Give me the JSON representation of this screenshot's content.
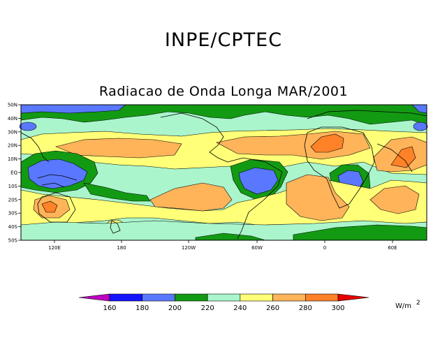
{
  "header": {
    "title": "INPE/CPTEC"
  },
  "map": {
    "title": "Radiacao de Onda Longa MAR/2001",
    "variable": "Outgoing Longwave Radiation",
    "lat_labels": [
      "50N",
      "40N",
      "30N",
      "20N",
      "10N",
      "EQ",
      "10S",
      "20S",
      "30S",
      "40S",
      "50S"
    ],
    "lon_labels": [
      "120E",
      "180",
      "120W",
      "60W",
      "0",
      "60E"
    ],
    "palette": {
      "lt160": "#c000c0",
      "b160_180": "#1414ff",
      "b180_200": "#5a78ff",
      "b200_220": "#139a13",
      "b220_240": "#aaf5cc",
      "b240_260": "#ffff78",
      "b260_280": "#ffb45a",
      "b280_300": "#ff8228",
      "gt300": "#e60000"
    }
  },
  "colorbar": {
    "labels": [
      "160",
      "180",
      "200",
      "220",
      "240",
      "260",
      "280",
      "300"
    ],
    "colors": [
      "#c000c0",
      "#1414ff",
      "#5a78ff",
      "#139a13",
      "#aaf5cc",
      "#ffff78",
      "#ffb45a",
      "#ff8228",
      "#e60000"
    ],
    "unit_base": "W/m",
    "unit_exp": "2"
  }
}
